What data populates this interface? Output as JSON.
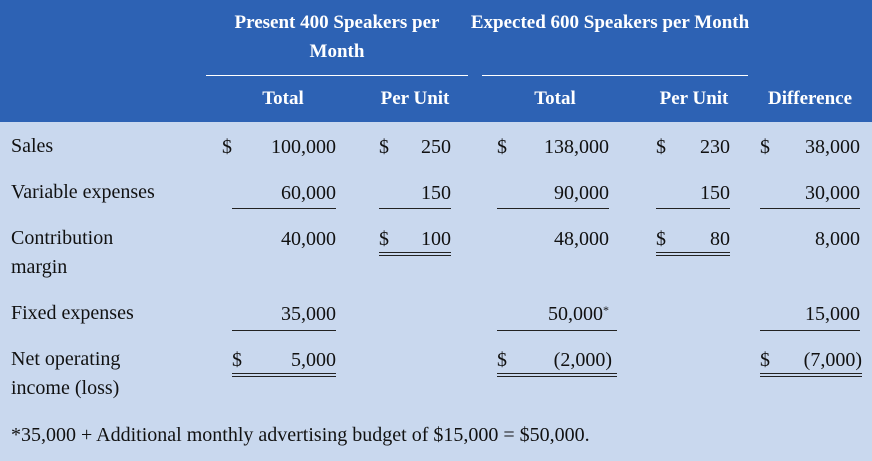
{
  "header": {
    "group1": "Present 400 Speakers per Month",
    "group2": "Expected 600 Speakers per Month",
    "col_total1": "Total",
    "col_perunit1": "Per Unit",
    "col_total2": "Total",
    "col_perunit2": "Per Unit",
    "col_difference": "Difference"
  },
  "rows": {
    "sales": {
      "label": "Sales",
      "total1": "100,000",
      "perunit1": "250",
      "total2": "138,000",
      "perunit2": "230",
      "difference": "38,000"
    },
    "variable": {
      "label": "Variable expenses",
      "total1": "60,000",
      "perunit1": "150",
      "total2": "90,000",
      "perunit2": "150",
      "difference": "30,000"
    },
    "contribution": {
      "label": "Contribution margin",
      "total1": "40,000",
      "perunit1": "100",
      "total2": "48,000",
      "perunit2": "80",
      "difference": "8,000"
    },
    "fixed": {
      "label": "Fixed expenses",
      "total1": "35,000",
      "total2": "50,000",
      "total2_marker": "*",
      "difference": "15,000"
    },
    "net": {
      "label": "Net operating income (loss)",
      "total1": "5,000",
      "total2": "(2,000)",
      "difference": "(7,000)"
    }
  },
  "currency": "$",
  "footnote": "*35,000 + Additional monthly advertising budget of $15,000 = $50,000.",
  "colors": {
    "header_bg": "#2d62b4",
    "body_bg": "#c9d8ee",
    "header_text": "#ffffff"
  }
}
